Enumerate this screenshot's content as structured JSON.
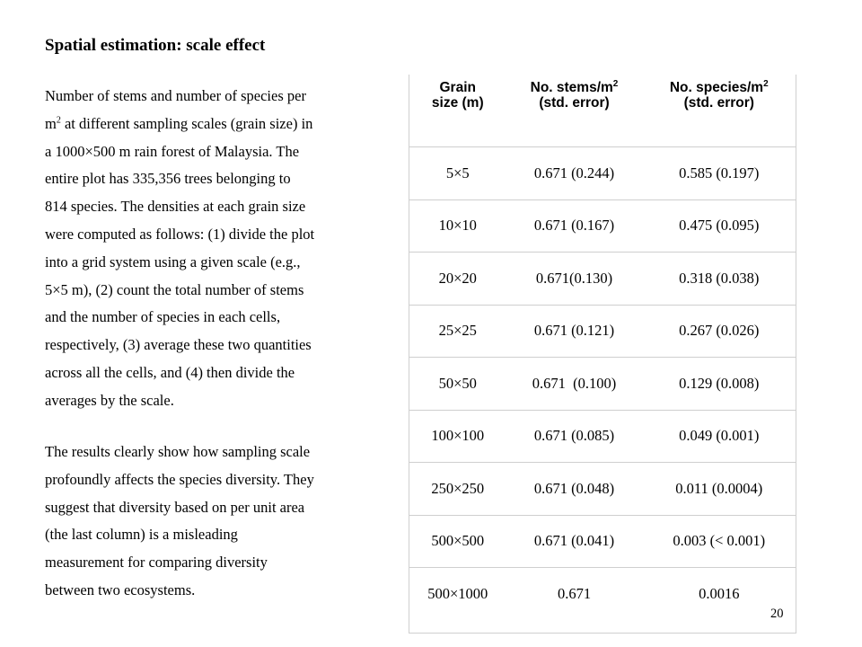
{
  "title": "Spatial estimation: scale effect",
  "paragraph1": {
    "line1": "Number of stems and number of species per",
    "line2_a": "m",
    "line2_sup": "2",
    "line2_b": " at different sampling scales (grain size) in",
    "line3": "a 1000×500 m rain forest of Malaysia. The",
    "line4": "entire plot has 335,356  trees belonging to",
    "line5": "814 species. The densities at each grain size",
    "line6": "were computed as follows: (1) divide the plot",
    "line7": "into a grid system using a given scale (e.g.,",
    "line8": "5×5 m), (2) count the total number of stems",
    "line9": "and the number of species in each cells,",
    "line10": "respectively, (3) average these two quantities",
    "line11": "across all the cells, and (4) then divide the",
    "line12": "averages by the scale."
  },
  "paragraph2": {
    "line1": "The results clearly show how sampling scale",
    "line2": "profoundly affects the species diversity. They",
    "line3": "suggest that diversity based on per unit area",
    "line4": "(the last column) is a misleading",
    "line5": "measurement for comparing diversity",
    "line6": "between two ecosystems."
  },
  "table": {
    "headers": {
      "grain_l1": "Grain",
      "grain_l2": "size (m)",
      "stems_l1": "No. stems/m",
      "stems_sup": "2",
      "stems_l2": "(std. error)",
      "species_l1": "No. species/m",
      "species_sup": "2",
      "species_l2": "(std. error)"
    },
    "rows": [
      {
        "grain": "5×5",
        "stems": "0.671 (0.244)",
        "species": "0.585 (0.197)"
      },
      {
        "grain": "10×10",
        "stems": "0.671 (0.167)",
        "species": "0.475 (0.095)"
      },
      {
        "grain": "20×20",
        "stems": "0.671(0.130)",
        "species": "0.318 (0.038)"
      },
      {
        "grain": "25×25",
        "stems": "0.671 (0.121)",
        "species": "0.267 (0.026)"
      },
      {
        "grain": "50×50",
        "stems": "0.671  (0.100)",
        "species": "0.129 (0.008)"
      },
      {
        "grain": "100×100",
        "stems": "0.671 (0.085)",
        "species": "0.049 (0.001)"
      },
      {
        "grain": "250×250",
        "stems": "0.671 (0.048)",
        "species": "0.011 (0.0004)"
      },
      {
        "grain": "500×500",
        "stems": "0.671 (0.041)",
        "species": "0.003 (< 0.001)"
      },
      {
        "grain": "500×1000",
        "stems": "0.671",
        "species": "0.0016"
      }
    ]
  },
  "page_number": "20"
}
